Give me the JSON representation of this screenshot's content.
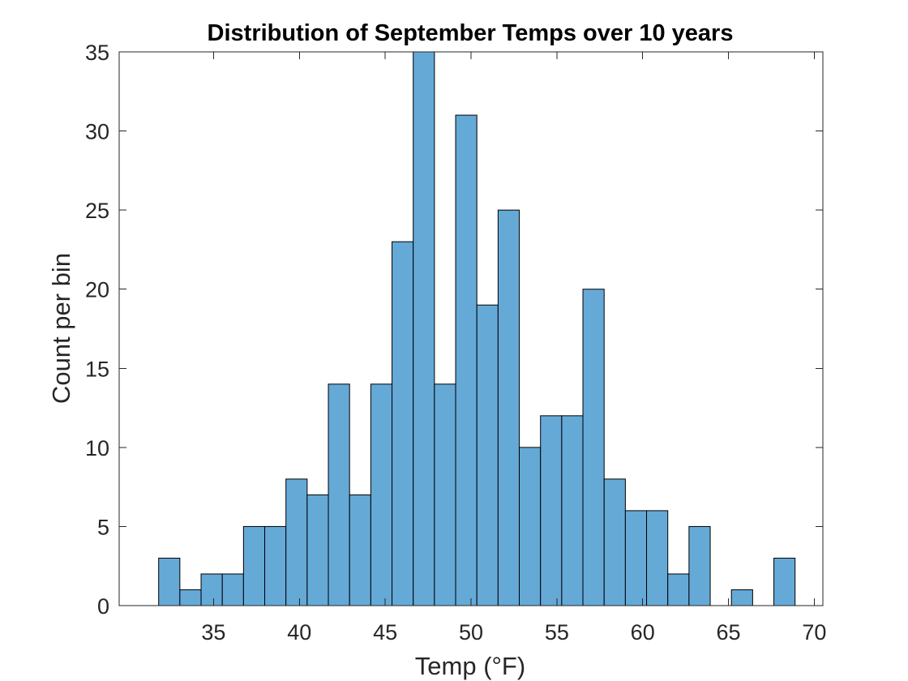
{
  "chart_data": {
    "type": "bar",
    "subtype": "histogram",
    "title": "Distribution of September Temps over 10 years",
    "xlabel": "Temp (°F)",
    "ylabel": "Count per bin",
    "xlim": [
      29.5,
      70.5
    ],
    "ylim": [
      0,
      35
    ],
    "xticks": [
      35,
      40,
      45,
      50,
      55,
      60,
      65,
      70
    ],
    "yticks": [
      0,
      5,
      10,
      15,
      20,
      25,
      30,
      35
    ],
    "bin_start": 31.8,
    "bin_width": 1.236,
    "values": [
      3,
      1,
      2,
      2,
      5,
      5,
      8,
      7,
      14,
      7,
      14,
      23,
      35,
      14,
      31,
      19,
      25,
      10,
      12,
      12,
      20,
      8,
      6,
      6,
      2,
      5,
      0,
      1,
      0,
      3
    ],
    "bar_color": "#65a9d7",
    "edge_color": "#000000",
    "grid": false
  }
}
